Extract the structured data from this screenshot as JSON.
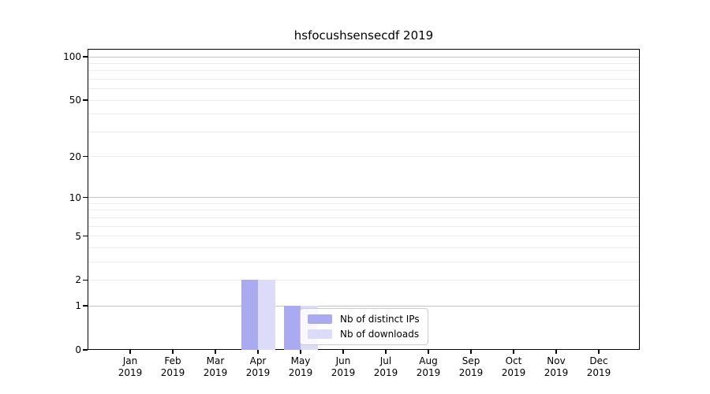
{
  "title": "hsfocushsensecdf 2019",
  "chart_data": {
    "type": "bar",
    "title": "hsfocushsensecdf 2019",
    "categories": [
      "Jan",
      "Feb",
      "Mar",
      "Apr",
      "May",
      "Jun",
      "Jul",
      "Aug",
      "Sep",
      "Oct",
      "Nov",
      "Dec"
    ],
    "year_label": "2019",
    "series": [
      {
        "name": "Nb of distinct IPs",
        "color": "#aaaaf0",
        "values": [
          0,
          0,
          0,
          2,
          1,
          0,
          0,
          0,
          0,
          0,
          0,
          0
        ]
      },
      {
        "name": "Nb of downloads",
        "color": "#dcdcf8",
        "values": [
          0,
          0,
          0,
          2,
          1,
          0,
          0,
          0,
          0,
          0,
          0,
          0
        ]
      }
    ],
    "xlabel": "",
    "ylabel": "",
    "yscale": "symlog (log10 of 1+y)",
    "ylim": [
      0,
      113
    ],
    "yticks": [
      0,
      1,
      2,
      5,
      10,
      20,
      50,
      100
    ],
    "yticks_minor": [
      3,
      4,
      6,
      7,
      8,
      9,
      30,
      40,
      60,
      70,
      80,
      90
    ],
    "grid": true,
    "axis_color": "#000000",
    "grid_major_color": "#c4c4c4",
    "grid_minor_color": "#ebebeb",
    "legend": {
      "entries": [
        "Nb of distinct IPs",
        "Nb of downloads"
      ],
      "position": "lower center"
    }
  }
}
